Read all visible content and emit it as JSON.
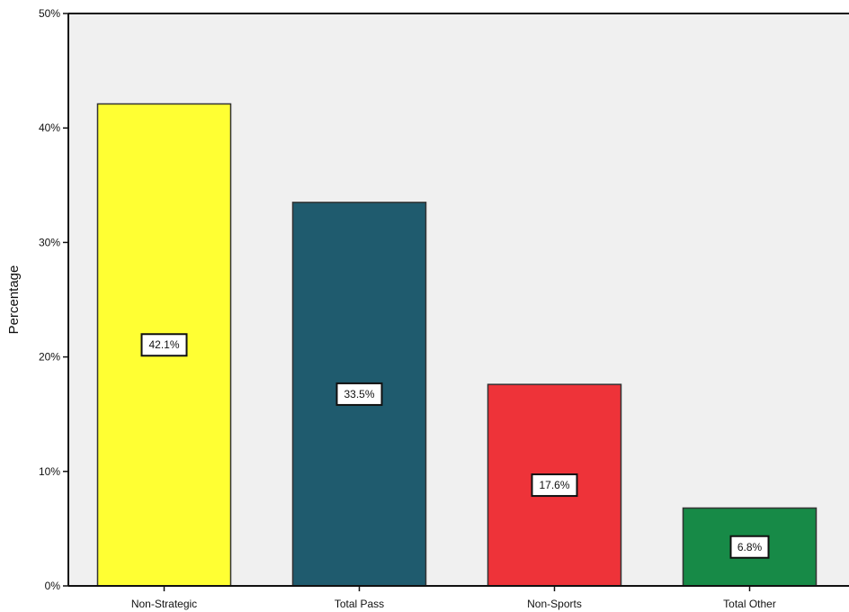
{
  "chart_data": {
    "type": "bar",
    "title": "",
    "xlabel": "",
    "ylabel": "Percentage",
    "categories": [
      "Non-Strategic",
      "Total Pass",
      "Non-Sports",
      "Total Other"
    ],
    "values": [
      42.1,
      33.5,
      17.6,
      6.8
    ],
    "data_labels": [
      "42.1%",
      "33.5%",
      "17.6%",
      "6.8%"
    ],
    "bar_colors": [
      "#ffff33",
      "#1f5b6e",
      "#ee3339",
      "#178a47"
    ],
    "ylim": [
      0,
      50
    ],
    "yticks": [
      0,
      10,
      20,
      30,
      40,
      50
    ],
    "ytick_labels": [
      "0%",
      "10%",
      "20%",
      "30%",
      "40%",
      "50%"
    ],
    "grid": false,
    "plot_background": "#f0f0f0"
  }
}
